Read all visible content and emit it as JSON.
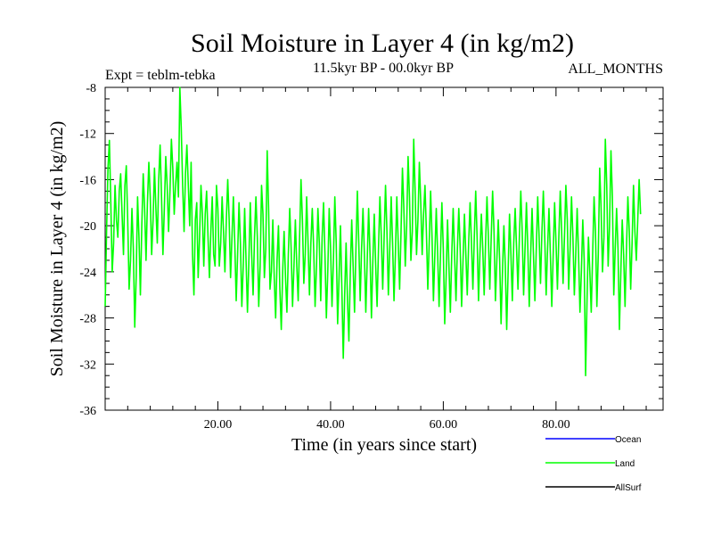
{
  "chart_data": {
    "type": "line",
    "title": "Soil Moisture in Layer 4 (in kg/m2)",
    "subtitle": "11.5kyr BP - 00.0kyr BP",
    "expt_label": "Expt = teblm-tebka",
    "months_label": "ALL_MONTHS",
    "xlabel": "Time (in years since start)",
    "ylabel": "Soil Moisture in Layer 4 (in kg/m2)",
    "xlim": [
      0,
      99
    ],
    "ylim": [
      -36,
      -8
    ],
    "x_ticks": [
      20,
      40,
      60,
      80
    ],
    "x_tick_labels": [
      "20.00",
      "40.00",
      "60.00",
      "80.00"
    ],
    "y_ticks": [
      -8,
      -12,
      -16,
      -20,
      -24,
      -28,
      -32,
      -36
    ],
    "y_tick_labels": [
      "-8",
      "-12",
      "-16",
      "-20",
      "-24",
      "-28",
      "-32",
      "-36"
    ],
    "legend": [
      {
        "name": "Ocean",
        "color": "#0000ff"
      },
      {
        "name": "Land",
        "color": "#00ff00"
      },
      {
        "name": "AllSurf",
        "color": "#000000"
      }
    ],
    "series": [
      {
        "name": "Land",
        "color": "#00ff00",
        "x_start": 0,
        "x_step": 0.25,
        "values": [
          -27.0,
          -20.5,
          -15.0,
          -12.6,
          -18.0,
          -24.0,
          -21.5,
          -16.5,
          -19.5,
          -21.0,
          -17.0,
          -15.5,
          -19.0,
          -22.5,
          -16.5,
          -14.8,
          -19.5,
          -25.5,
          -23.0,
          -18.5,
          -22.0,
          -28.8,
          -24.5,
          -17.5,
          -21.0,
          -26.0,
          -20.0,
          -15.5,
          -18.5,
          -23.0,
          -18.0,
          -14.5,
          -17.5,
          -22.5,
          -19.5,
          -15.0,
          -18.5,
          -21.5,
          -16.0,
          -13.0,
          -17.5,
          -22.5,
          -18.5,
          -14.0,
          -16.5,
          -20.5,
          -17.0,
          -12.5,
          -15.0,
          -19.0,
          -16.5,
          -14.5,
          -17.5,
          -8.0,
          -11.5,
          -16.5,
          -20.5,
          -15.5,
          -13.0,
          -16.5,
          -20.0,
          -14.5,
          -22.5,
          -26.0,
          -19.5,
          -18.0,
          -24.5,
          -21.0,
          -16.5,
          -19.0,
          -23.5,
          -19.0,
          -17.0,
          -21.0,
          -24.5,
          -20.5,
          -17.5,
          -22.5,
          -23.5,
          -16.5,
          -18.5,
          -23.5,
          -21.5,
          -17.5,
          -20.5,
          -24.0,
          -19.5,
          -16.0,
          -19.5,
          -24.5,
          -21.0,
          -17.5,
          -21.5,
          -26.5,
          -22.5,
          -18.0,
          -21.5,
          -27.0,
          -23.5,
          -18.5,
          -23.0,
          -27.5,
          -23.0,
          -18.0,
          -22.5,
          -26.0,
          -21.0,
          -17.5,
          -21.0,
          -27.0,
          -23.5,
          -16.5,
          -19.0,
          -24.5,
          -22.0,
          -13.5,
          -18.5,
          -25.5,
          -24.0,
          -19.5,
          -24.5,
          -28.0,
          -23.0,
          -20.0,
          -25.5,
          -29.0,
          -24.0,
          -20.5,
          -24.5,
          -27.5,
          -22.5,
          -18.5,
          -22.0,
          -27.0,
          -23.5,
          -19.5,
          -23.5,
          -26.5,
          -21.0,
          -16.0,
          -19.5,
          -25.0,
          -22.5,
          -17.5,
          -21.5,
          -26.0,
          -21.5,
          -18.5,
          -22.0,
          -27.0,
          -23.5,
          -18.5,
          -21.5,
          -26.5,
          -21.0,
          -18.0,
          -22.5,
          -28.0,
          -24.0,
          -18.5,
          -22.0,
          -27.0,
          -23.0,
          -17.5,
          -21.5,
          -28.5,
          -24.5,
          -20.0,
          -25.5,
          -31.5,
          -26.0,
          -21.5,
          -26.5,
          -30.0,
          -24.0,
          -19.5,
          -23.5,
          -27.5,
          -22.0,
          -17.0,
          -21.5,
          -26.5,
          -22.0,
          -18.5,
          -22.5,
          -27.5,
          -23.0,
          -18.5,
          -22.5,
          -28.0,
          -23.0,
          -19.0,
          -23.5,
          -27.0,
          -22.0,
          -17.5,
          -21.0,
          -25.5,
          -21.0,
          -16.5,
          -20.5,
          -26.0,
          -22.0,
          -17.5,
          -21.5,
          -26.5,
          -22.5,
          -17.5,
          -21.5,
          -25.5,
          -20.5,
          -15.0,
          -18.5,
          -23.5,
          -20.0,
          -14.0,
          -17.5,
          -23.0,
          -20.5,
          -12.5,
          -17.0,
          -22.5,
          -19.5,
          -14.5,
          -18.0,
          -22.5,
          -19.0,
          -16.5,
          -20.5,
          -25.5,
          -21.5,
          -17.0,
          -21.0,
          -26.5,
          -22.5,
          -18.5,
          -22.5,
          -27.0,
          -22.5,
          -18.0,
          -22.0,
          -28.5,
          -24.5,
          -19.5,
          -23.5,
          -27.5,
          -22.5,
          -18.5,
          -22.5,
          -26.5,
          -22.0,
          -18.5,
          -22.0,
          -27.0,
          -23.0,
          -19.0,
          -22.5,
          -26.0,
          -21.5,
          -18.0,
          -21.5,
          -25.5,
          -21.0,
          -17.0,
          -21.0,
          -26.5,
          -22.5,
          -19.0,
          -22.0,
          -26.0,
          -21.5,
          -17.5,
          -21.0,
          -25.5,
          -21.0,
          -17.0,
          -20.5,
          -26.5,
          -23.0,
          -19.5,
          -23.0,
          -28.5,
          -24.0,
          -20.0,
          -23.5,
          -29.0,
          -24.0,
          -19.0,
          -22.5,
          -26.5,
          -21.5,
          -18.5,
          -22.0,
          -25.5,
          -21.0,
          -17.0,
          -20.5,
          -26.0,
          -22.0,
          -18.0,
          -22.0,
          -27.0,
          -22.5,
          -18.5,
          -22.5,
          -26.5,
          -22.0,
          -17.5,
          -21.0,
          -25.0,
          -20.5,
          -17.0,
          -21.0,
          -26.0,
          -22.0,
          -18.5,
          -22.5,
          -27.0,
          -22.5,
          -18.0,
          -21.5,
          -25.5,
          -21.0,
          -17.0,
          -20.5,
          -25.0,
          -21.0,
          -16.5,
          -19.5,
          -25.5,
          -22.0,
          -17.5,
          -21.0,
          -26.0,
          -22.5,
          -18.5,
          -22.5,
          -27.5,
          -24.0,
          -19.5,
          -23.0,
          -33.0,
          -26.5,
          -21.0,
          -24.0,
          -27.5,
          -22.5,
          -17.5,
          -20.5,
          -27.0,
          -22.5,
          -15.0,
          -18.5,
          -24.0,
          -21.0,
          -12.5,
          -16.5,
          -23.5,
          -20.0,
          -13.5,
          -17.5,
          -26.0,
          -22.0,
          -18.5,
          -22.0,
          -29.0,
          -24.0,
          -19.5,
          -22.5,
          -27.0,
          -22.0,
          -17.5,
          -20.5,
          -25.5,
          -21.5,
          -16.5,
          -20.5,
          -23.0,
          -19.5,
          -16.0,
          -19.0
        ]
      }
    ]
  }
}
